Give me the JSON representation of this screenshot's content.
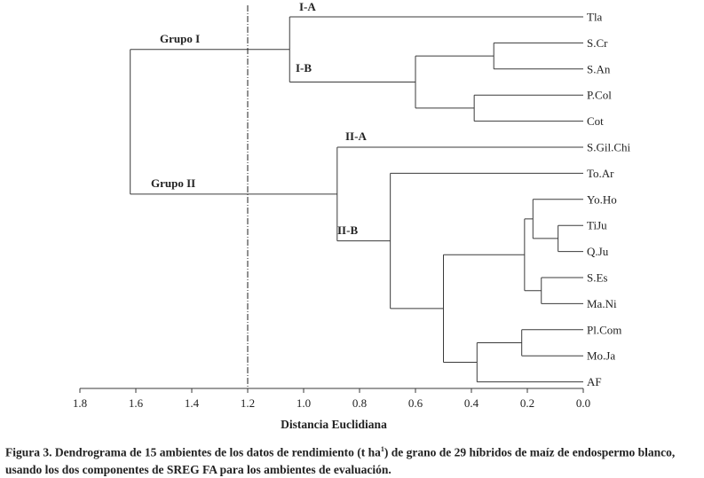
{
  "leaves": [
    "Tla",
    "S.Cr",
    "S.An",
    "P.Col",
    "Cot",
    "S.Gil.Chi",
    "To.Ar",
    "Yo.Ho",
    "TiJu",
    "Q.Ju",
    "S.Es",
    "Ma.Ni",
    "Pl.Com",
    "Mo.Ja",
    "AF"
  ],
  "axis": {
    "title": "Distancia Euclidiana",
    "ticks": [
      "1.8",
      "1.6",
      "1.4",
      "1.2",
      "1.0",
      "0.8",
      "0.6",
      "0.4",
      "0.2",
      "0.0"
    ],
    "tick_values": [
      1.8,
      1.6,
      1.4,
      1.2,
      1.0,
      0.8,
      0.6,
      0.4,
      0.2,
      0.0
    ],
    "range": [
      1.8,
      0.0
    ]
  },
  "cut_height": 1.2,
  "merges": [
    {
      "left": "S.Cr",
      "right": "S.An",
      "height": 0.32
    },
    {
      "left": "P.Col",
      "right": "Cot",
      "height": 0.39
    },
    {
      "left": "m0",
      "right": "m1",
      "height": 0.6
    },
    {
      "left": "Tla",
      "right": "m2",
      "height": 1.05
    },
    {
      "left": "TiJu",
      "right": "Q.Ju",
      "height": 0.09
    },
    {
      "left": "Yo.Ho",
      "right": "m4",
      "height": 0.18
    },
    {
      "left": "S.Es",
      "right": "Ma.Ni",
      "height": 0.15
    },
    {
      "left": "m5",
      "right": "m6",
      "height": 0.21
    },
    {
      "left": "Pl.Com",
      "right": "Mo.Ja",
      "height": 0.22
    },
    {
      "left": "m8",
      "right": "AF",
      "height": 0.38
    },
    {
      "left": "m7",
      "right": "m9",
      "height": 0.5
    },
    {
      "left": "To.Ar",
      "right": "m10",
      "height": 0.69
    },
    {
      "left": "S.Gil.Chi",
      "right": "m11",
      "height": 0.88
    },
    {
      "left": "m3",
      "right": "m12",
      "height": 1.62
    }
  ],
  "group_labels": {
    "grupo1": "Grupo I",
    "grupo2": "Grupo II",
    "IA": "I-A",
    "IB": "I-B",
    "IIA": "II-A",
    "IIB": "II-B"
  },
  "caption": {
    "prefix": "Figura 3. Dendrograma de 15 ambientes de los datos de rendimiento (t ha",
    "sup": "1",
    "suffix": ") de grano de 29 híbridos de maíz de endospermo blanco, usando los dos componentes de SREG FA para los ambientes de evaluación."
  }
}
